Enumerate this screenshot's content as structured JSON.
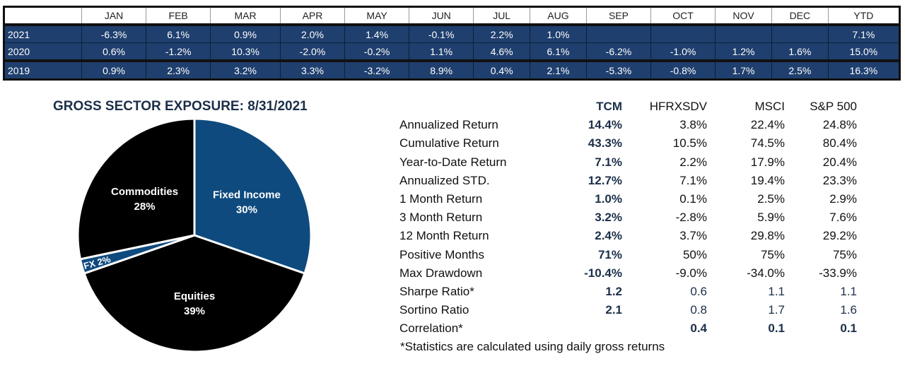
{
  "monthly_returns": {
    "headers": [
      "",
      "JAN",
      "FEB",
      "MAR",
      "APR",
      "MAY",
      "JUN",
      "JUL",
      "AUG",
      "SEP",
      "OCT",
      "NOV",
      "DEC",
      "YTD"
    ],
    "rows": [
      [
        "2021",
        "-6.3%",
        "6.1%",
        "0.9%",
        "2.0%",
        "1.4%",
        "-0.1%",
        "2.2%",
        "1.0%",
        "",
        "",
        "",
        "",
        "7.1%"
      ],
      [
        "2020",
        "0.6%",
        "-1.2%",
        "10.3%",
        "-2.0%",
        "-0.2%",
        "1.1%",
        "4.6%",
        "6.1%",
        "-6.2%",
        "-1.0%",
        "1.2%",
        "1.6%",
        "15.0%"
      ],
      [
        "2019",
        "0.9%",
        "2.3%",
        "3.2%",
        "3.3%",
        "-3.2%",
        "8.9%",
        "0.4%",
        "2.1%",
        "-5.3%",
        "-0.8%",
        "1.7%",
        "2.5%",
        "16.3%"
      ]
    ]
  },
  "chart_data": {
    "type": "pie",
    "title": "GROSS SECTOR EXPOSURE: 8/31/2021",
    "slices": [
      {
        "label": "Fixed Income",
        "value": 30,
        "text": "30%",
        "color": "#0e4a7e"
      },
      {
        "label": "Equities",
        "value": 39,
        "text": "39%",
        "color": "#000000"
      },
      {
        "label": "FX",
        "value": 2,
        "text": "2%",
        "color": "#0e4a7e"
      },
      {
        "label": "Commodities",
        "value": 28,
        "text": "28%",
        "color": "#000000"
      }
    ]
  },
  "stats": {
    "headers": [
      "",
      "TCM",
      "HFRXSDV",
      "MSCI",
      "S&P 500"
    ],
    "rows": [
      [
        "Annualized Return",
        "14.4%",
        "3.8%",
        "22.4%",
        "24.8%"
      ],
      [
        "Cumulative Return",
        "43.3%",
        "10.5%",
        "74.5%",
        "80.4%"
      ],
      [
        "Year-to-Date Return",
        "7.1%",
        "2.2%",
        "17.9%",
        "20.4%"
      ],
      [
        "Annualized STD.",
        "12.7%",
        "7.1%",
        "19.4%",
        "23.3%"
      ],
      [
        "1 Month Return",
        "1.0%",
        "0.1%",
        "2.5%",
        "2.9%"
      ],
      [
        "3 Month Return",
        "3.2%",
        "-2.8%",
        "5.9%",
        "7.6%"
      ],
      [
        "12 Month Return",
        "2.4%",
        "3.7%",
        "29.8%",
        "29.2%"
      ],
      [
        "Positive Months",
        "71%",
        "50%",
        "75%",
        "75%"
      ],
      [
        "Max Drawdown",
        "-10.4%",
        "-9.0%",
        "-34.0%",
        "-33.9%"
      ],
      [
        "Sharpe Ratio*",
        "1.2",
        "0.6",
        "1.1",
        "1.1"
      ],
      [
        "Sortino Ratio",
        "2.1",
        "0.8",
        "1.7",
        "1.6"
      ],
      [
        "Correlation*",
        "",
        "0.4",
        "0.1",
        "0.1"
      ]
    ],
    "note": "*Statistics are calculated using daily gross returns"
  }
}
